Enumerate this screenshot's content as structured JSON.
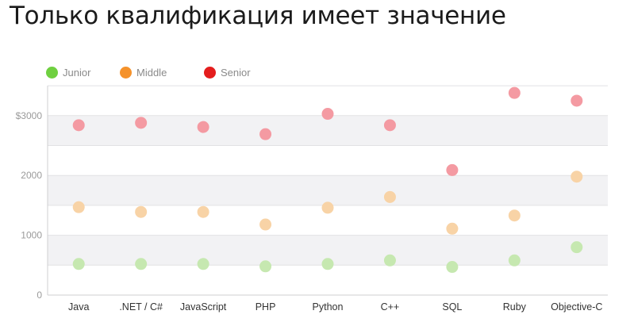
{
  "title": "Только квалификация имеет значение",
  "colors": {
    "junior": "#c6e8b0",
    "middle": "#f8d3a6",
    "senior": "#f49aa2",
    "legend_junior": "#6fd040",
    "legend_middle": "#f5922b",
    "legend_senior": "#e41d1d",
    "band": "#f2f2f4",
    "grid": "#e2e2e4"
  },
  "chart_data": {
    "type": "scatter",
    "categories": [
      "Java",
      ".NET / C#",
      "JavaScript",
      "PHP",
      "Python",
      "C++",
      "SQL",
      "Ruby",
      "Objective-C"
    ],
    "series": [
      {
        "name": "Junior",
        "values": [
          520,
          520,
          520,
          480,
          520,
          580,
          470,
          580,
          800
        ]
      },
      {
        "name": "Middle",
        "values": [
          1470,
          1390,
          1390,
          1180,
          1460,
          1640,
          1110,
          1330,
          1980
        ]
      },
      {
        "name": "Senior",
        "values": [
          2840,
          2880,
          2810,
          2690,
          3030,
          2840,
          2090,
          3380,
          3250
        ]
      }
    ],
    "ylim": [
      0,
      3500
    ],
    "y_ticks": [
      {
        "value": 0,
        "label": "0"
      },
      {
        "value": 1000,
        "label": "1000"
      },
      {
        "value": 2000,
        "label": "2000"
      },
      {
        "value": 3000,
        "label": "$3000"
      }
    ],
    "legend_position": "top-left",
    "grid": true
  }
}
